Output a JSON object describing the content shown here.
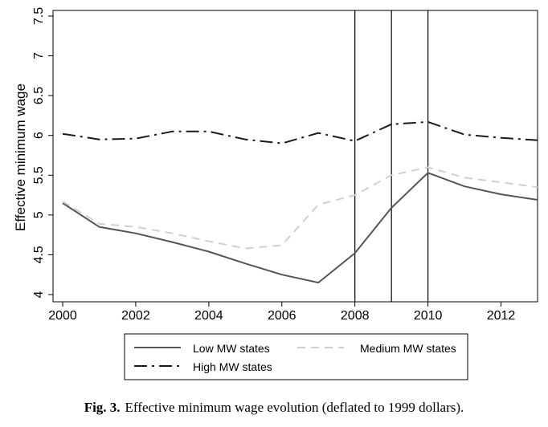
{
  "chart_data": {
    "type": "line",
    "ylabel": "Effective minimum wage",
    "xlabel": "",
    "xlim": [
      2000,
      2013
    ],
    "ylim": [
      4,
      7.5
    ],
    "x_ticks": [
      "2000",
      "2002",
      "2004",
      "2006",
      "2008",
      "2010",
      "2012"
    ],
    "y_ticks": [
      "4",
      "4.5",
      "5",
      "5.5",
      "6",
      "6.5",
      "7",
      "7.5"
    ],
    "vertical_lines": [
      2008,
      2009,
      2010
    ],
    "grid": false,
    "legend_placement": "bottom",
    "x": [
      2000,
      2001,
      2002,
      2003,
      2004,
      2005,
      2006,
      2007,
      2008,
      2009,
      2010,
      2011,
      2012,
      2013
    ],
    "series": [
      {
        "name": "Low MW states",
        "style": "solid",
        "color": "#555555",
        "values": [
          5.15,
          4.85,
          4.77,
          4.66,
          4.54,
          4.39,
          4.25,
          4.15,
          4.52,
          5.09,
          5.53,
          5.36,
          5.26,
          5.19
        ]
      },
      {
        "name": "Medium MW states",
        "style": "dashed",
        "color": "#d0d0d0",
        "values": [
          5.17,
          4.89,
          4.85,
          4.77,
          4.67,
          4.58,
          4.62,
          5.13,
          5.25,
          5.5,
          5.6,
          5.47,
          5.41,
          5.35
        ]
      },
      {
        "name": "High MW states",
        "style": "dash-dot",
        "color": "#1a1a1a",
        "values": [
          6.02,
          5.95,
          5.96,
          6.05,
          6.05,
          5.95,
          5.9,
          6.03,
          5.93,
          6.14,
          6.17,
          6.01,
          5.97,
          5.94
        ]
      }
    ]
  },
  "caption": {
    "label": "Fig. 3.",
    "text": "Effective minimum wage evolution (deflated to 1999 dollars)."
  }
}
